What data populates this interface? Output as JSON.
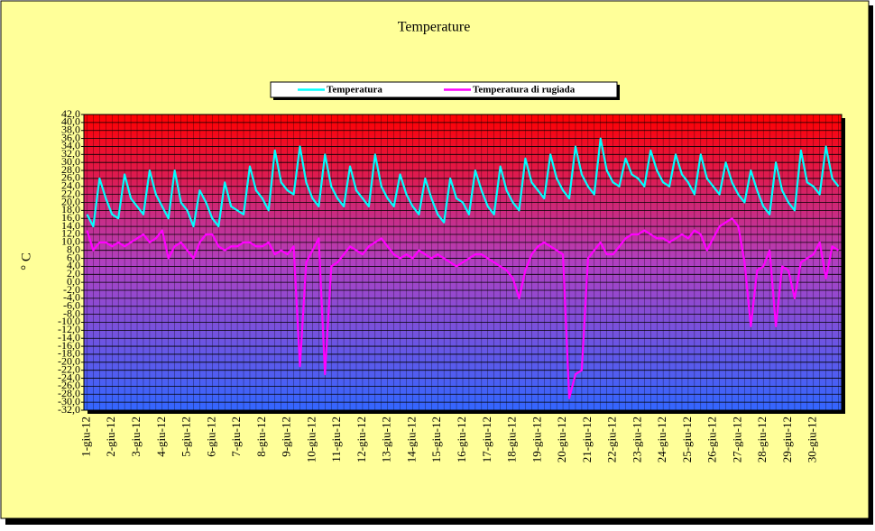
{
  "chart_data": {
    "type": "line",
    "title": "Temperature",
    "y_label": "° C",
    "categories": [
      "1-giu-12",
      null,
      null,
      null,
      "2-giu-12",
      null,
      null,
      null,
      "3-giu-12",
      null,
      null,
      null,
      "4-giu-12",
      null,
      null,
      null,
      "5-giu-12",
      null,
      null,
      null,
      "6-giu-12",
      null,
      null,
      null,
      "7-giu-12",
      null,
      null,
      null,
      "8-giu-12",
      null,
      null,
      null,
      "9-giu-12",
      null,
      null,
      null,
      "10-giu-12",
      null,
      null,
      null,
      "11-giu-12",
      null,
      null,
      null,
      "12-giu-12",
      null,
      null,
      null,
      "13-giu-12",
      null,
      null,
      null,
      "14-giu-12",
      null,
      null,
      null,
      "15-giu-12",
      null,
      null,
      null,
      "16-giu-12",
      null,
      null,
      null,
      "17-giu-12",
      null,
      null,
      null,
      "18-giu-12",
      null,
      null,
      null,
      "19-giu-12",
      null,
      null,
      null,
      "20-giu-12",
      null,
      null,
      null,
      "21-giu-12",
      null,
      null,
      null,
      "22-giu-12",
      null,
      null,
      null,
      "23-giu-12",
      null,
      null,
      null,
      "24-giu-12",
      null,
      null,
      null,
      "25-giu-12",
      null,
      null,
      null,
      "26-giu-12",
      null,
      null,
      null,
      "27-giu-12",
      null,
      null,
      null,
      "28-giu-12",
      null,
      null,
      null,
      "29-giu-12",
      null,
      null,
      null,
      "30-giu-12",
      null,
      null,
      null,
      null
    ],
    "series": [
      {
        "name": "Temperatura",
        "color": "#00ffff",
        "values": [
          17,
          14,
          26,
          21,
          17,
          16,
          27,
          21,
          19,
          17,
          28,
          22,
          19,
          16,
          28,
          20,
          18,
          14,
          23,
          20,
          16,
          14,
          25,
          19,
          18,
          17,
          29,
          23,
          21,
          18,
          33,
          25,
          23,
          22,
          34,
          25,
          21,
          19,
          32,
          24,
          21,
          19,
          29,
          23,
          21,
          19,
          32,
          24,
          21,
          19,
          27,
          22,
          19,
          17,
          26,
          21,
          17,
          15,
          26,
          21,
          20,
          17,
          28,
          23,
          19,
          17,
          29,
          23,
          20,
          18,
          31,
          25,
          23,
          21,
          32,
          26,
          23,
          21,
          34,
          27,
          24,
          22,
          36,
          28,
          25,
          24,
          31,
          27,
          26,
          24,
          33,
          28,
          25,
          24,
          32,
          27,
          25,
          22,
          32,
          26,
          24,
          22,
          30,
          25,
          22,
          20,
          28,
          23,
          19,
          17,
          30,
          23,
          20,
          18,
          33,
          25,
          24,
          22,
          34,
          26,
          24
        ]
      },
      {
        "name": "Temperatura di rugiada",
        "color": "#ff00ff",
        "values": [
          13,
          8,
          10,
          10,
          9,
          10,
          9,
          10,
          11,
          12,
          10,
          11,
          13,
          6,
          9,
          10,
          8,
          6,
          10,
          12,
          12,
          9,
          8,
          9,
          9,
          10,
          10,
          9,
          9,
          10,
          7,
          8,
          7,
          9,
          -21,
          5,
          8,
          11,
          -23,
          4,
          5,
          7,
          9,
          8,
          7,
          9,
          10,
          11,
          9,
          7,
          6,
          7,
          6,
          8,
          7,
          6,
          7,
          6,
          5,
          4,
          5,
          6,
          7,
          7,
          6,
          5,
          4,
          3,
          1,
          -4,
          3,
          7,
          9,
          10,
          9,
          8,
          7,
          -29,
          -23,
          -22,
          6,
          8,
          10,
          7,
          7,
          9,
          11,
          12,
          12,
          13,
          12,
          11,
          11,
          10,
          11,
          12,
          11,
          13,
          12,
          8,
          11,
          14,
          15,
          16,
          14,
          5,
          -11,
          3,
          4,
          8,
          -11,
          4,
          3,
          -4,
          5,
          6,
          7,
          10,
          1,
          9,
          8
        ]
      }
    ],
    "ylim": [
      -32,
      42
    ],
    "yticks": [
      {
        "value": 42,
        "label": "42,0"
      },
      {
        "value": 40,
        "label": "40,0"
      },
      {
        "value": 38,
        "label": "38,0"
      },
      {
        "value": 36,
        "label": "36,0"
      },
      {
        "value": 34,
        "label": "34,0"
      },
      {
        "value": 32,
        "label": "32,0"
      },
      {
        "value": 30,
        "label": "30,0"
      },
      {
        "value": 28,
        "label": "28,0"
      },
      {
        "value": 26,
        "label": "26,0"
      },
      {
        "value": 24,
        "label": "24,0"
      },
      {
        "value": 22,
        "label": "22,0"
      },
      {
        "value": 20,
        "label": "20,0"
      },
      {
        "value": 18,
        "label": "18,0"
      },
      {
        "value": 16,
        "label": "16,0"
      },
      {
        "value": 14,
        "label": "14,0"
      },
      {
        "value": 12,
        "label": "12,0"
      },
      {
        "value": 10,
        "label": "10,0"
      },
      {
        "value": 8,
        "label": "8,0"
      },
      {
        "value": 6,
        "label": "6,0"
      },
      {
        "value": 4,
        "label": "4,0"
      },
      {
        "value": 2,
        "label": "2,0"
      },
      {
        "value": 0,
        "label": "0,0"
      },
      {
        "value": -2,
        "label": "-2,0"
      },
      {
        "value": -4,
        "label": "-4,0"
      },
      {
        "value": -6,
        "label": "-6,0"
      },
      {
        "value": -8,
        "label": "-8,0"
      },
      {
        "value": -10,
        "label": "-10,0"
      },
      {
        "value": -12,
        "label": "-12,0"
      },
      {
        "value": -14,
        "label": "-14,0"
      },
      {
        "value": -16,
        "label": "-16,0"
      },
      {
        "value": -18,
        "label": "-18,0"
      },
      {
        "value": -20,
        "label": "-20,0"
      },
      {
        "value": -22,
        "label": "-22,0"
      },
      {
        "value": -24,
        "label": "-24,0"
      },
      {
        "value": -26,
        "label": "-26,0"
      },
      {
        "value": -28,
        "label": "-28,0"
      },
      {
        "value": -30,
        "label": "-30,0"
      },
      {
        "value": -32,
        "label": "-32,0"
      }
    ],
    "grid": true
  }
}
